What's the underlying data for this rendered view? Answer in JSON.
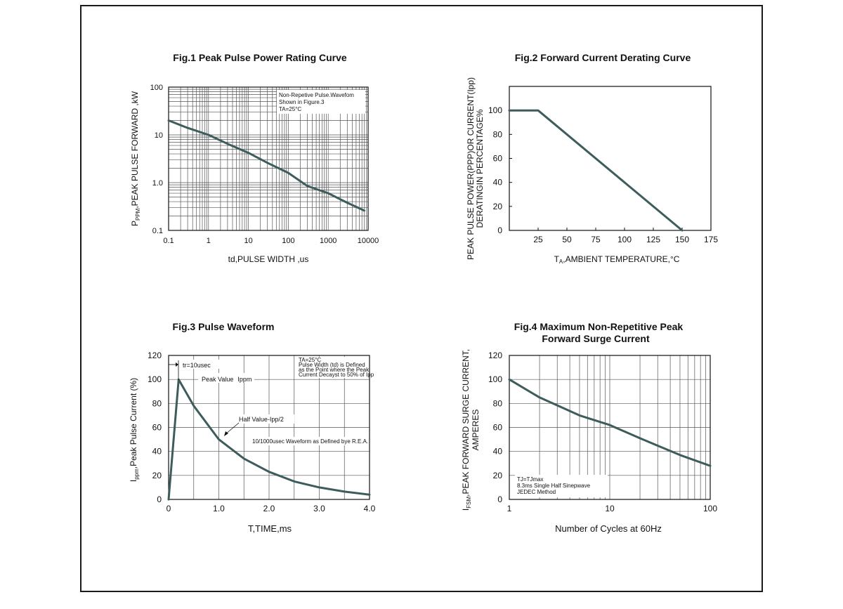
{
  "chart_data": [
    {
      "type": "line",
      "title": "Fig.1  Peak Pulse Power Rating Curve",
      "xlabel": "td,PULSE WIDTH ,us",
      "ylabel": {
        "main": "P",
        "sub": "PPM",
        "rest": ",PEAK PULSE  FORWARD ,kW"
      },
      "xscale": "log",
      "yscale": "log",
      "xlim": [
        0.1,
        10000
      ],
      "ylim": [
        0.1,
        100
      ],
      "xticks": [
        "0.1",
        "1",
        "10",
        "100",
        "1000",
        "10000"
      ],
      "yticks": [
        "0.1",
        "1.0",
        "10",
        "100"
      ],
      "grid": true,
      "annotation": [
        "Non-Repetive  Pulse.Wavefom",
        "Shown in Figure.3",
        "TA=25°C"
      ],
      "series": [
        {
          "x": [
            0.1,
            0.3,
            1,
            3,
            10,
            30,
            100,
            300,
            1000,
            3000,
            8000
          ],
          "y": [
            20,
            14,
            10,
            6.5,
            4.2,
            2.6,
            1.6,
            0.85,
            0.6,
            0.38,
            0.26
          ]
        }
      ]
    },
    {
      "type": "line",
      "title": "Fig.2  Forward Current Derating Curve",
      "xlabel": {
        "main": "T",
        "sub": "A",
        "rest": ",AMBIENT TEMPERATURE,°C"
      },
      "ylabel": [
        "PEAK PULSE POWER(PPP)OR CURRENT(Ipp)",
        "DERATINGIN PERCENTAGE%"
      ],
      "xlim": [
        0,
        175
      ],
      "ylim": [
        0,
        120
      ],
      "xticks": [
        "25",
        "50",
        "75",
        "100",
        "125",
        "150",
        "175"
      ],
      "yticks": [
        "0",
        "20",
        "40",
        "60",
        "80",
        "100"
      ],
      "grid": false,
      "series": [
        {
          "x": [
            0,
            25,
            150
          ],
          "y": [
            100,
            100,
            0
          ]
        }
      ]
    },
    {
      "type": "line",
      "title": "Fig.3  Pulse Waveform",
      "xlabel": "T,TIME,ms",
      "ylabel": {
        "main": "I",
        "sub": "ppm",
        "rest": ",Peak Pulse Current (%)"
      },
      "xlim": [
        0,
        4.0
      ],
      "ylim": [
        0,
        120
      ],
      "xticks": [
        "0",
        "1.0",
        "2.0",
        "3.0",
        "4.0"
      ],
      "yticks": [
        "0",
        "20",
        "40",
        "60",
        "80",
        "100",
        "120"
      ],
      "grid": true,
      "annotations": {
        "tr": "tr=10usec",
        "peak_value": "Peak  Value",
        "peak_sub": "Ippm",
        "half_value": "Half  Value-Ipp/2",
        "waveform": "10/1000usec  Waveform as Defined bye R.E.A.",
        "conditions": [
          "TA=25°C",
          "Pulse   Width (td) is Defined",
          "as the Point  where the Peak",
          "Current  Decayst to 50% of Ipp"
        ]
      },
      "series": [
        {
          "x": [
            0,
            0.2,
            0.5,
            1.0,
            1.5,
            2.0,
            2.5,
            3.0,
            3.5,
            4.0
          ],
          "y": [
            0,
            100,
            78,
            50,
            34,
            23,
            15,
            10,
            6.5,
            4
          ]
        }
      ]
    },
    {
      "type": "line",
      "title": [
        "Fig.4  Maximum Non-Repetitive Peak",
        "Forward Surge Current"
      ],
      "xlabel": "Number of Cycles at 60Hz",
      "ylabel": {
        "main": "I",
        "sub": "FSM",
        "rest": ",PEAK FORWARD SURGE CURRENT,",
        "line2": "AMPERES"
      },
      "xscale": "log",
      "xlim": [
        1,
        100
      ],
      "ylim": [
        0,
        120
      ],
      "xticks": [
        "1",
        "10",
        "100"
      ],
      "yticks": [
        "0",
        "20",
        "40",
        "60",
        "80",
        "100",
        "120"
      ],
      "grid": true,
      "annotation": [
        "TJ=TJmax",
        "8.3ms Single Half  Sinepwave",
        "JEDEC Method"
      ],
      "series": [
        {
          "x": [
            1,
            2,
            5,
            10,
            20,
            50,
            100
          ],
          "y": [
            100,
            85,
            70,
            62,
            51,
            37,
            28
          ]
        }
      ]
    }
  ]
}
